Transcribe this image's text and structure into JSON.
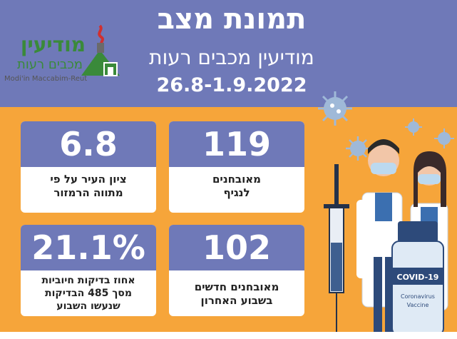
{
  "header": {
    "title": "תמונת מצב",
    "subtitle": "מודיעין מכבים רעות",
    "dates": "26.8-1.9.2022"
  },
  "logo": {
    "hebrew_top": "מודיעין",
    "hebrew_bottom": "מכבים רעות",
    "english": "Modi'in Maccabim-Reut"
  },
  "cards": [
    {
      "value": "119",
      "line1": "מאובחנים",
      "line2": "לנגיף",
      "line3": ""
    },
    {
      "value": "6.8",
      "line1": "ציון העיר על פי",
      "line2": "מתווה הרמזור",
      "line3": ""
    },
    {
      "value": "102",
      "line1": "מאובחנים חדשים",
      "line2": "בשבוע האחרון",
      "line3": ""
    },
    {
      "value": "21.1%",
      "line1": "אחוז בדיקות חיוביות",
      "line2": "מסך 485 הבדיקות",
      "line3": "שנעשו השבוע"
    }
  ],
  "illustration": {
    "vial_label": "COVID-19",
    "vial_text1": "Coronavirus",
    "vial_text2": "Vaccine"
  },
  "colors": {
    "header_bg": "#6f79b8",
    "page_bg": "#f6a53a",
    "card_top": "#6f79b8",
    "logo_green": "#3a8a3a"
  }
}
